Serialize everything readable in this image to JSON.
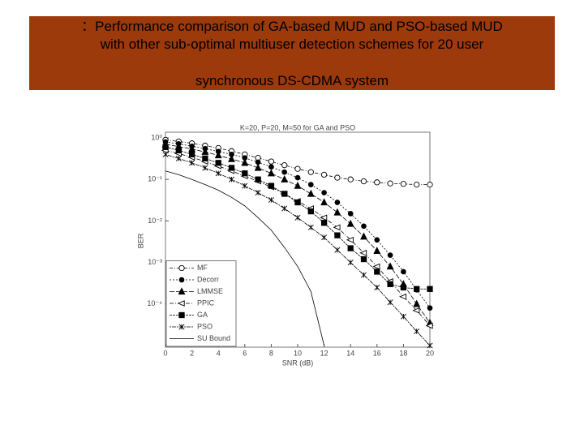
{
  "header": {
    "lines": [
      "：Performance comparison of GA-based MUD and PSO-based MUD",
      "with other sub-optimal multiuser detection schemes for 20 user",
      "synchronous DS-CDMA system"
    ]
  },
  "chart_data": {
    "type": "line",
    "title": "K=20, P=20, M=50 for GA and PSO",
    "xlabel": "SNR (dB)",
    "ylabel": "BER",
    "log_y": true,
    "x": [
      0,
      1,
      2,
      3,
      4,
      5,
      6,
      7,
      8,
      9,
      10,
      11,
      12,
      13,
      14,
      15,
      16,
      17,
      18,
      19,
      20
    ],
    "xlim": [
      0,
      20
    ],
    "xticks": [
      0,
      2,
      4,
      6,
      8,
      10,
      12,
      14,
      16,
      18,
      20
    ],
    "ylim": [
      1e-05,
      1
    ],
    "yticks": [
      {
        "value": 1,
        "label": "10⁰"
      },
      {
        "value": 0.1,
        "label": "10⁻¹"
      },
      {
        "value": 0.01,
        "label": "10⁻²"
      },
      {
        "value": 0.001,
        "label": "10⁻³"
      },
      {
        "value": 0.0001,
        "label": "10⁻⁴"
      }
    ],
    "legend": "lower left",
    "series": [
      {
        "name": "MF",
        "color": "#000000",
        "marker": "open-circle",
        "values": [
          0.9,
          0.82,
          0.74,
          0.65,
          0.57,
          0.48,
          0.4,
          0.33,
          0.27,
          0.22,
          0.18,
          0.15,
          0.13,
          0.11,
          0.1,
          0.09,
          0.085,
          0.08,
          0.078,
          0.075,
          0.075
        ]
      },
      {
        "name": "Decorr",
        "color": "#000000",
        "marker": "dot",
        "values": [
          0.8,
          0.72,
          0.63,
          0.55,
          0.47,
          0.4,
          0.33,
          0.26,
          0.2,
          0.15,
          0.11,
          0.075,
          0.048,
          0.028,
          0.015,
          0.0075,
          0.0035,
          0.0015,
          0.0006,
          0.00022,
          8e-05
        ]
      },
      {
        "name": "LMMSE",
        "color": "#000000",
        "marker": "triangle",
        "values": [
          0.7,
          0.62,
          0.54,
          0.46,
          0.38,
          0.31,
          0.25,
          0.19,
          0.14,
          0.1,
          0.07,
          0.045,
          0.028,
          0.016,
          0.0085,
          0.0042,
          0.0019,
          0.0008,
          0.0003,
          0.0001,
          3.5e-05
        ]
      },
      {
        "name": "PPIC",
        "color": "#000000",
        "marker": "open-left-triangle",
        "values": [
          0.5,
          0.42,
          0.34,
          0.27,
          0.21,
          0.16,
          0.12,
          0.09,
          0.065,
          0.045,
          0.03,
          0.02,
          0.012,
          0.007,
          0.0035,
          0.0017,
          0.0008,
          0.00035,
          0.00015,
          7e-05,
          3e-05
        ]
      },
      {
        "name": "GA",
        "color": "#000000",
        "marker": "square",
        "values": [
          0.6,
          0.5,
          0.4,
          0.32,
          0.25,
          0.19,
          0.14,
          0.1,
          0.07,
          0.045,
          0.028,
          0.017,
          0.009,
          0.0045,
          0.0022,
          0.0012,
          0.0006,
          0.0003,
          0.00025,
          0.00023,
          0.00023
        ]
      },
      {
        "name": "PSO",
        "color": "#000000",
        "marker": "star",
        "values": [
          0.4,
          0.32,
          0.25,
          0.19,
          0.14,
          0.1,
          0.07,
          0.048,
          0.032,
          0.02,
          0.012,
          0.007,
          0.004,
          0.002,
          0.001,
          0.0005,
          0.00025,
          0.00011,
          5e-05,
          2.2e-05,
          1e-05
        ]
      },
      {
        "name": "SU Bound",
        "color": "#000000",
        "marker": "none",
        "values": [
          0.16,
          0.13,
          0.1,
          0.075,
          0.055,
          0.037,
          0.023,
          0.012,
          0.006,
          0.0023,
          0.0008,
          0.0002,
          1e-05,
          null,
          null,
          null,
          null,
          null,
          null,
          null,
          null
        ]
      }
    ]
  }
}
